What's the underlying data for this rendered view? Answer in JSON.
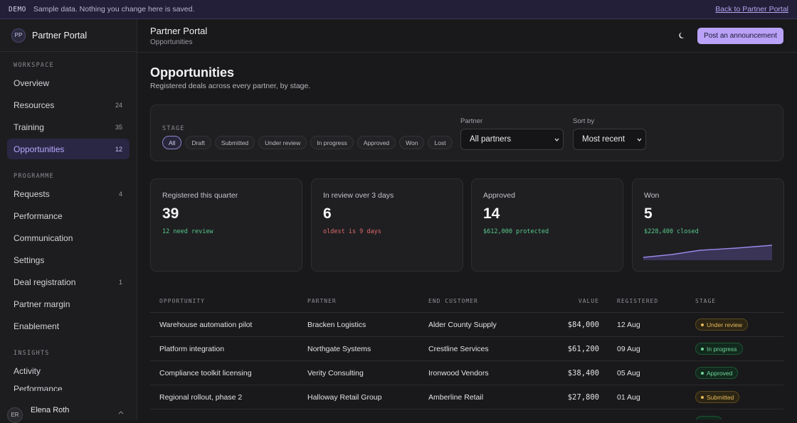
{
  "banner": {
    "tag": "DEMO",
    "text": "Sample data. Nothing you change here is saved.",
    "back_link": "Back to Partner Portal"
  },
  "brand": {
    "initials": "PP",
    "name": "Partner Portal"
  },
  "sidebar": {
    "sections": [
      {
        "label": "WORKSPACE",
        "items": [
          {
            "label": "Overview",
            "count": ""
          },
          {
            "label": "Resources",
            "count": "24"
          },
          {
            "label": "Training",
            "count": "35"
          },
          {
            "label": "Opportunities",
            "count": "12",
            "active": true
          }
        ]
      },
      {
        "label": "PROGRAMME",
        "items": [
          {
            "label": "Requests",
            "count": "4"
          },
          {
            "label": "Performance",
            "count": ""
          },
          {
            "label": "Communication",
            "count": ""
          },
          {
            "label": "Settings",
            "count": ""
          },
          {
            "label": "Deal registration",
            "count": "1"
          },
          {
            "label": "Partner margin",
            "count": ""
          },
          {
            "label": "Enablement",
            "count": ""
          }
        ]
      },
      {
        "label": "INSIGHTS",
        "items": [
          {
            "label": "Activity",
            "count": ""
          },
          {
            "label": "Performance",
            "count": ""
          }
        ]
      }
    ],
    "user": {
      "initials": "ER",
      "name": "Elena Roth"
    }
  },
  "topbar": {
    "title": "Partner Portal",
    "breadcrumb": "Opportunities",
    "post_button": "Post an announcement"
  },
  "page": {
    "title": "Opportunities",
    "subtitle": "Registered deals across every partner, by stage."
  },
  "filters": {
    "stage_label": "STAGE",
    "stages": [
      "All",
      "Draft",
      "Submitted",
      "Under review",
      "In progress",
      "Approved",
      "Won",
      "Lost"
    ],
    "active_stage": "All",
    "partner_label": "Partner",
    "partner_value": "All partners",
    "sort_label": "Sort by",
    "sort_value": "Most recent"
  },
  "stats": [
    {
      "label": "Registered this quarter",
      "value": "39",
      "note": "12 need review",
      "tone": "green"
    },
    {
      "label": "In review over 3 days",
      "value": "6",
      "note": "oldest is 9 days",
      "tone": "red"
    },
    {
      "label": "Approved",
      "value": "14",
      "note": "$612,000 protected",
      "tone": "green"
    },
    {
      "label": "Won",
      "value": "5",
      "note": "$228,400 closed",
      "tone": "green"
    }
  ],
  "accent_color": "#b9a2f7",
  "table": {
    "headers": [
      "OPPORTUNITY",
      "PARTNER",
      "END CUSTOMER",
      "VALUE",
      "REGISTERED",
      "STAGE"
    ],
    "rows": [
      {
        "opportunity": "Warehouse automation pilot",
        "partner": "Bracken Logistics",
        "customer": "Alder County Supply",
        "value": "$84,000",
        "registered": "12 Aug",
        "stage": "Under review"
      },
      {
        "opportunity": "Platform integration",
        "partner": "Northgate Systems",
        "customer": "Crestline Services",
        "value": "$61,200",
        "registered": "09 Aug",
        "stage": "In progress"
      },
      {
        "opportunity": "Compliance toolkit licensing",
        "partner": "Verity Consulting",
        "customer": "Ironwood Vendors",
        "value": "$38,400",
        "registered": "05 Aug",
        "stage": "Approved"
      },
      {
        "opportunity": "Regional rollout, phase 2",
        "partner": "Halloway Retail Group",
        "customer": "Amberline Retail",
        "value": "$27,800",
        "registered": "01 Aug",
        "stage": "Submitted"
      }
    ]
  }
}
